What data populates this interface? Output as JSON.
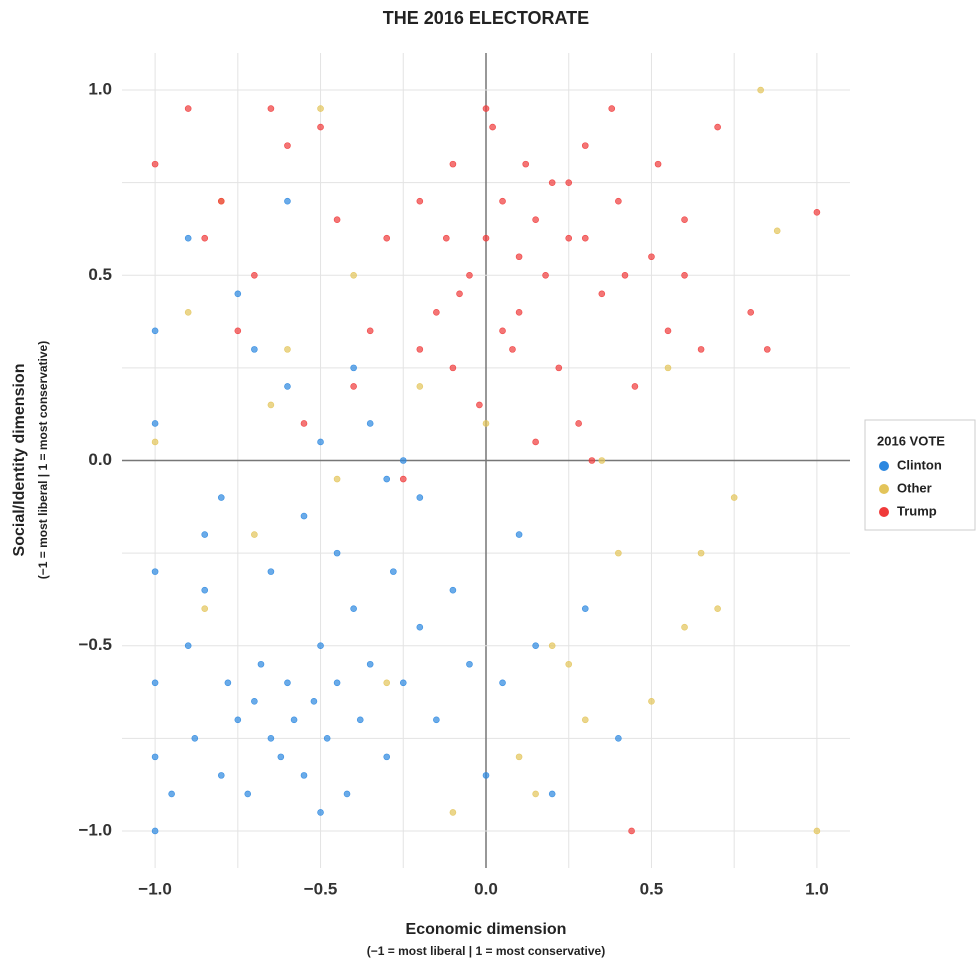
{
  "chart_data": {
    "type": "scatter",
    "title": "THE 2016 ELECTORATE",
    "x_label": "Economic dimension",
    "x_sublabel": "(−1 = most liberal | 1 = most conservative)",
    "y_label": "Social/Identity dimension",
    "y_sublabel": "(−1 = most liberal | 1 = most conservative)",
    "legend_title": "2016 VOTE",
    "legend_position": "right",
    "grid": true,
    "xlim": [
      -1.1,
      1.1
    ],
    "ylim": [
      -1.1,
      1.1
    ],
    "xticks": [
      {
        "value": -1,
        "label": "−1.0"
      },
      {
        "value": -0.5,
        "label": "−0.5"
      },
      {
        "value": 0,
        "label": "0.0"
      },
      {
        "value": 0.5,
        "label": "0.5"
      },
      {
        "value": 1,
        "label": "1.0"
      }
    ],
    "yticks": [
      {
        "value": -1,
        "label": "−1.0"
      },
      {
        "value": -0.5,
        "label": "−0.5"
      },
      {
        "value": 0,
        "label": "0.0"
      },
      {
        "value": 0.5,
        "label": "0.5"
      },
      {
        "value": 1,
        "label": "1.0"
      }
    ],
    "xminorticks": [
      -0.75,
      -0.25,
      0.25,
      0.75
    ],
    "yminorticks": [
      -0.75,
      -0.25,
      0.25,
      0.75
    ],
    "series": [
      {
        "name": "Clinton",
        "color": "#2b87e0",
        "x": [
          -1,
          -1,
          -1,
          -1,
          -1,
          -1,
          -0.95,
          -0.9,
          -0.88,
          -0.85,
          -0.8,
          -0.78,
          -0.75,
          -0.72,
          -0.7,
          -0.68,
          -0.65,
          -0.62,
          -0.6,
          -0.58,
          -0.55,
          -0.52,
          -0.5,
          -0.48,
          -0.45,
          -0.42,
          -0.4,
          -0.38,
          -0.35,
          -0.3,
          -0.28,
          -0.25,
          -0.2,
          -0.15,
          -0.1,
          -0.05,
          0,
          0.05,
          0.1,
          0.2,
          0.3,
          0.4,
          -0.7,
          -0.6,
          -0.5,
          -0.8,
          -0.9,
          -0.65,
          -0.55,
          -0.45,
          -0.35,
          -0.25,
          -0.75,
          -0.85,
          -0.6,
          -0.4,
          -0.2,
          0.15,
          -0.5,
          -0.3
        ],
        "values": [
          -1,
          -0.8,
          -0.6,
          -0.3,
          0.1,
          0.35,
          -0.9,
          -0.5,
          -0.75,
          -0.2,
          -0.85,
          -0.6,
          -0.7,
          -0.9,
          -0.65,
          -0.55,
          -0.75,
          -0.8,
          -0.6,
          -0.7,
          -0.85,
          -0.65,
          -0.5,
          -0.75,
          -0.6,
          -0.9,
          -0.4,
          -0.7,
          -0.55,
          -0.8,
          -0.3,
          -0.6,
          -0.45,
          -0.7,
          -0.35,
          -0.55,
          -0.85,
          -0.6,
          -0.2,
          -0.9,
          -0.4,
          -0.75,
          0.3,
          0.2,
          0.05,
          -0.1,
          0.6,
          -0.3,
          -0.15,
          -0.25,
          0.1,
          0.0,
          0.45,
          -0.35,
          0.7,
          0.25,
          -0.1,
          -0.5,
          -0.95,
          -0.05
        ]
      },
      {
        "name": "Other",
        "color": "#e3c45a",
        "x": [
          -1,
          -0.9,
          -0.8,
          -0.7,
          -0.6,
          -0.5,
          -0.4,
          -0.3,
          -0.2,
          -0.1,
          0,
          0.1,
          0.2,
          0.3,
          0.4,
          0.5,
          0.6,
          0.7,
          0.75,
          0.83,
          1.0,
          0.88,
          0.55,
          0.35,
          -0.85,
          -0.65,
          -0.45,
          0.25,
          0.65,
          0.15
        ],
        "values": [
          0.05,
          0.4,
          0.7,
          -0.2,
          0.3,
          0.95,
          0.5,
          -0.6,
          0.2,
          -0.95,
          0.1,
          -0.8,
          -0.5,
          -0.7,
          -0.25,
          -0.65,
          -0.45,
          -0.4,
          -0.1,
          1.0,
          -1.0,
          0.62,
          0.25,
          0.0,
          -0.4,
          0.15,
          -0.05,
          -0.55,
          -0.25,
          -0.9
        ]
      },
      {
        "name": "Trump",
        "color": "#f03a3a",
        "x": [
          0,
          0.05,
          -0.05,
          0.1,
          -0.1,
          0.15,
          -0.15,
          0.2,
          -0.2,
          0.25,
          0.3,
          0.35,
          0.4,
          0.45,
          0.5,
          0.55,
          0.6,
          0.7,
          0.8,
          1.0,
          -0.3,
          -0.4,
          -0.5,
          -0.6,
          -0.7,
          -0.8,
          -0.9,
          -1,
          -0.25,
          -0.35,
          0.02,
          0.08,
          -0.02,
          0.12,
          0.18,
          0.28,
          0.38,
          -0.12,
          -0.08,
          0.22,
          0.32,
          0.42,
          0.52,
          0.65,
          -0.45,
          -0.55,
          -0.65,
          -0.75,
          -0.85,
          0.44,
          0.1,
          0.0,
          -0.2,
          0.3,
          0.15,
          0.05,
          -0.1,
          0.25,
          0.6,
          0.85
        ],
        "values": [
          0.6,
          0.7,
          0.5,
          0.55,
          0.8,
          0.65,
          0.4,
          0.75,
          0.3,
          0.6,
          0.85,
          0.45,
          0.7,
          0.2,
          0.55,
          0.35,
          0.65,
          0.9,
          0.4,
          0.67,
          0.6,
          0.2,
          0.9,
          0.85,
          0.5,
          0.7,
          0.95,
          0.8,
          -0.05,
          0.35,
          0.9,
          0.3,
          0.15,
          0.8,
          0.5,
          0.1,
          0.95,
          0.6,
          0.45,
          0.25,
          0.0,
          0.5,
          0.8,
          0.3,
          0.65,
          0.1,
          0.95,
          0.35,
          0.6,
          -1,
          0.4,
          0.95,
          0.7,
          0.6,
          0.05,
          0.35,
          0.25,
          0.75,
          0.5,
          0.3
        ]
      }
    ]
  }
}
